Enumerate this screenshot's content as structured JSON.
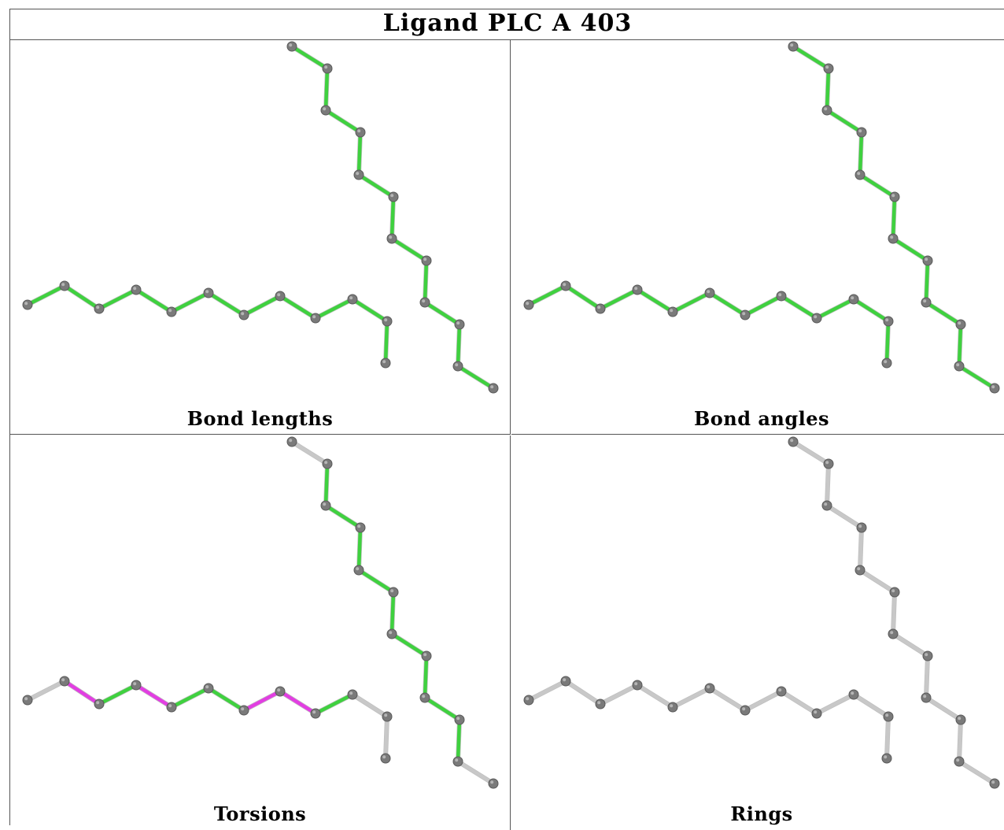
{
  "title": "Ligand PLC A 403",
  "colors": {
    "green": "#3fd13f",
    "magenta": "#e23ee2",
    "gray": "#c8c8c8",
    "atom": "#7a7a7a"
  },
  "panels": [
    {
      "caption": "Bond lengths",
      "chainA": [
        "green",
        "green",
        "green",
        "green",
        "green",
        "green",
        "green",
        "green",
        "green",
        "green",
        "green"
      ],
      "chainB": [
        "green",
        "green",
        "green",
        "green",
        "green",
        "green",
        "green",
        "green",
        "green",
        "green",
        "green"
      ]
    },
    {
      "caption": "Bond angles",
      "chainA": [
        "green",
        "green",
        "green",
        "green",
        "green",
        "green",
        "green",
        "green",
        "green",
        "green",
        "green"
      ],
      "chainB": [
        "green",
        "green",
        "green",
        "green",
        "green",
        "green",
        "green",
        "green",
        "green",
        "green",
        "green"
      ]
    },
    {
      "caption": "Torsions",
      "chainA": [
        "gray",
        "magenta",
        "green",
        "magenta",
        "green",
        "green",
        "magenta",
        "magenta",
        "green",
        "gray",
        "gray"
      ],
      "chainB": [
        "gray",
        "green",
        "green",
        "green",
        "green",
        "green",
        "green",
        "green",
        "green",
        "green",
        "gray"
      ]
    },
    {
      "caption": "Rings",
      "chainA": [
        "gray",
        "gray",
        "gray",
        "gray",
        "gray",
        "gray",
        "gray",
        "gray",
        "gray",
        "gray",
        "gray"
      ],
      "chainB": [
        "gray",
        "gray",
        "gray",
        "gray",
        "gray",
        "gray",
        "gray",
        "gray",
        "gray",
        "gray",
        "gray"
      ]
    }
  ]
}
